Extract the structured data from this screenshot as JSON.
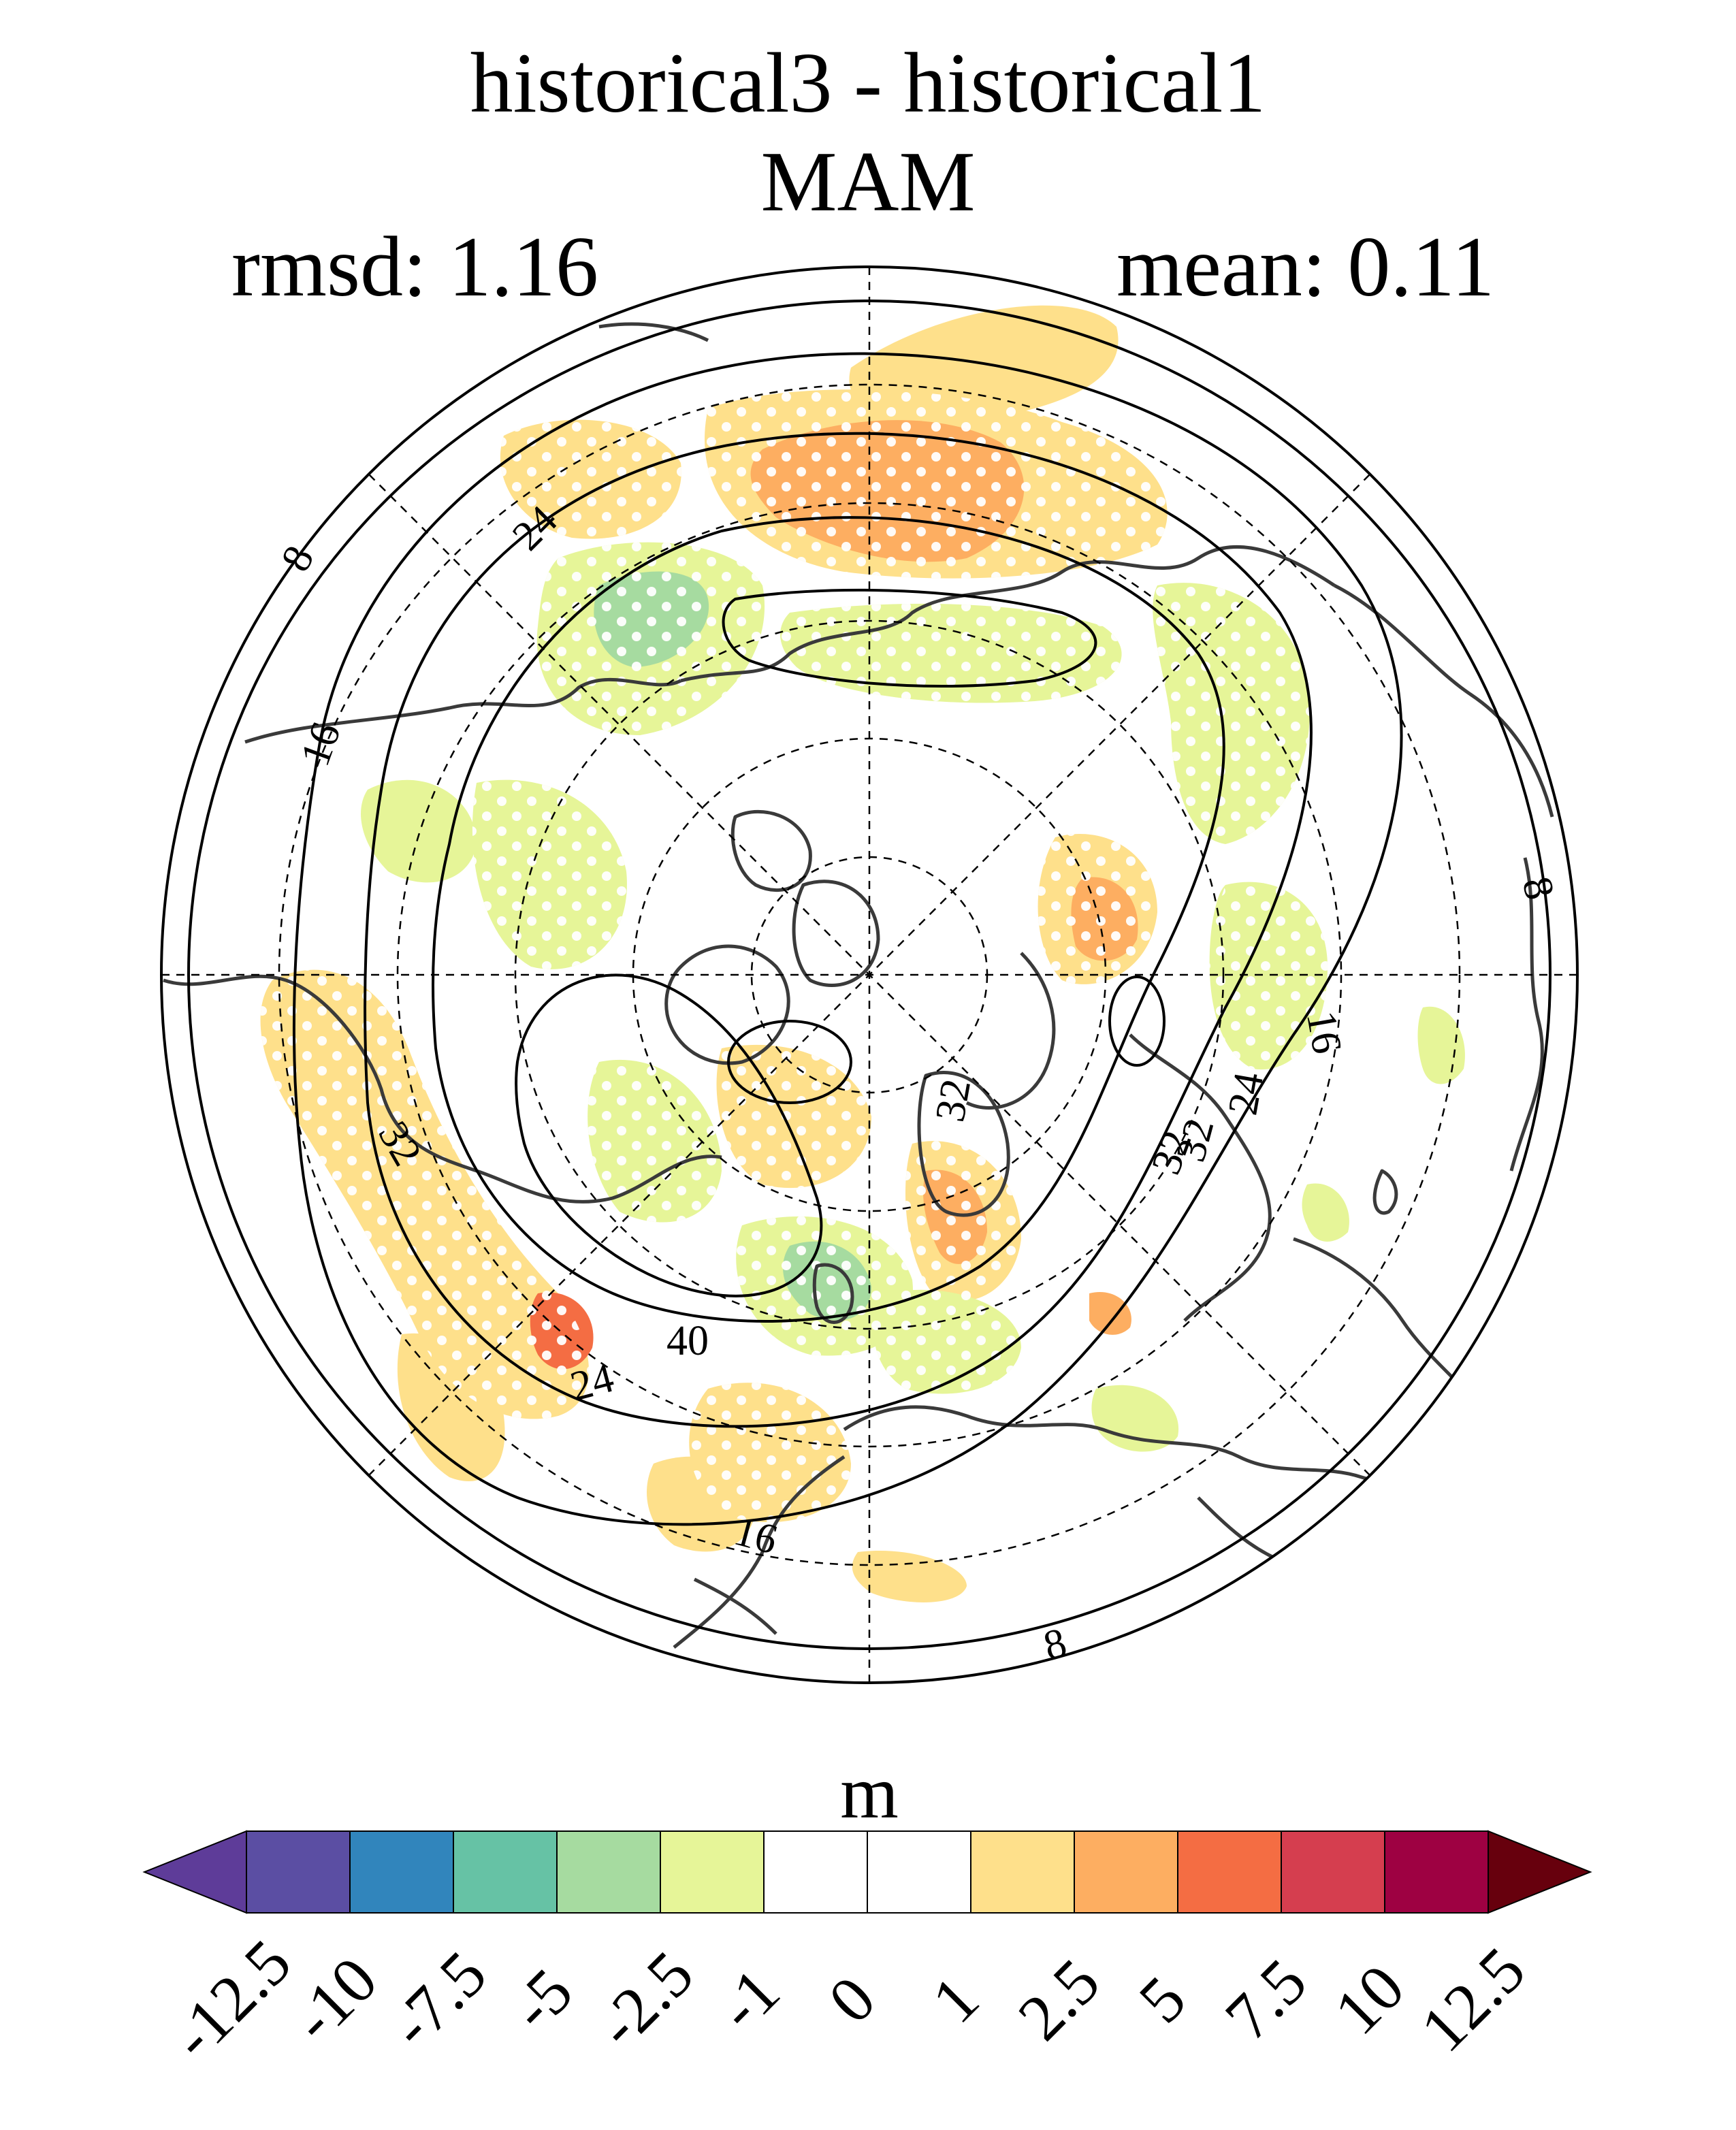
{
  "title": {
    "line1": "historical3 - historical1",
    "line2": "MAM"
  },
  "stats": {
    "rmsd": "rmsd: 1.16",
    "mean": "mean: 0.11"
  },
  "colorbar": {
    "unit": "m",
    "ticks": [
      "-12.5",
      "-10",
      "-7.5",
      "-5",
      "-2.5",
      "-1",
      "0",
      "1",
      "2.5",
      "5",
      "7.5",
      "10",
      "12.5"
    ],
    "colors": [
      "#5e3c99",
      "#5b4ea3",
      "#3185bc",
      "#66c2a5",
      "#a6dba0",
      "#e6f598",
      "#ffffff",
      "#ffffff",
      "#fee08b",
      "#fdae61",
      "#f46d43",
      "#d53e4f",
      "#9e0142",
      "#67000d"
    ]
  },
  "contour_labels": [
    "8",
    "8",
    "8",
    "16",
    "16",
    "16",
    "24",
    "24",
    "24",
    "32",
    "32",
    "32",
    "32",
    "40"
  ],
  "map": {
    "projection": "north-polar-stereographic",
    "stippling": "white dots mark significant differences"
  }
}
